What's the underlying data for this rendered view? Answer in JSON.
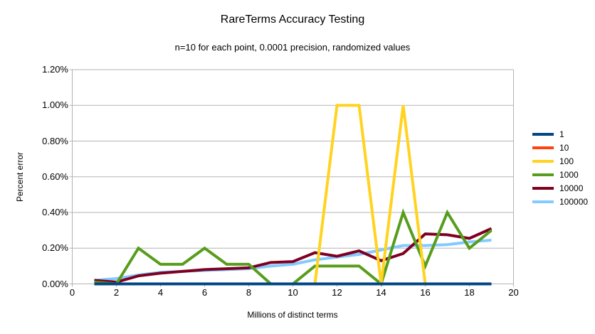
{
  "colors": {
    "background": "#ffffff",
    "grid": "#b3b3b3",
    "axis": "#b3b3b3",
    "text": "#000000"
  },
  "chart_data": {
    "type": "line",
    "title": "RareTerms Accuracy Testing",
    "subtitle": "n=10 for each point, 0.0001 precision, randomized values",
    "xlabel": "Millions of distinct terms",
    "ylabel": "Percent error",
    "xlim": [
      0,
      20
    ],
    "ylim": [
      0,
      1.2
    ],
    "grid": true,
    "legend_position": "right",
    "x_ticks": [
      0,
      2,
      4,
      6,
      8,
      10,
      12,
      14,
      16,
      18,
      20
    ],
    "y_ticks": [
      0,
      0.2,
      0.4,
      0.6,
      0.8,
      1.0,
      1.2
    ],
    "y_tick_labels": [
      "0.00%",
      "0.20%",
      "0.40%",
      "0.60%",
      "0.80%",
      "1.00%",
      "1.20%"
    ],
    "x": [
      1,
      2,
      3,
      4,
      5,
      6,
      7,
      8,
      9,
      10,
      11,
      12,
      13,
      14,
      15,
      16,
      17,
      18,
      19
    ],
    "series": [
      {
        "name": "1",
        "color": "#004586",
        "values": [
          0,
          0,
          0,
          0,
          0,
          0,
          0,
          0,
          0,
          0,
          0,
          0,
          0,
          0,
          0,
          0,
          0,
          0,
          0
        ]
      },
      {
        "name": "10",
        "color": "#FF420E",
        "values": [
          0,
          0,
          0,
          0,
          0,
          0,
          0,
          0,
          0,
          0,
          0,
          0,
          0,
          0,
          0,
          0,
          0,
          0,
          0
        ]
      },
      {
        "name": "100",
        "color": "#FFD320",
        "values": [
          0,
          0,
          0,
          0,
          0,
          0,
          0,
          0,
          0,
          0,
          0,
          1.0,
          1.0,
          0,
          1.0,
          0,
          0,
          0,
          0
        ]
      },
      {
        "name": "1000",
        "color": "#579D1C",
        "values": [
          0.01,
          0,
          0.2,
          0.11,
          0.11,
          0.2,
          0.11,
          0.11,
          0,
          0,
          0.1,
          0.1,
          0.1,
          0,
          0.4,
          0.1,
          0.4,
          0.2,
          0.3
        ]
      },
      {
        "name": "10000",
        "color": "#7E0021",
        "values": [
          0.02,
          0.01,
          0.045,
          0.06,
          0.07,
          0.08,
          0.085,
          0.09,
          0.12,
          0.125,
          0.175,
          0.155,
          0.185,
          0.13,
          0.17,
          0.28,
          0.275,
          0.255,
          0.31
        ]
      },
      {
        "name": "100000",
        "color": "#83CAFF",
        "values": [
          0.02,
          0.03,
          0.05,
          0.065,
          0.07,
          0.075,
          0.08,
          0.085,
          0.1,
          0.11,
          0.135,
          0.15,
          0.165,
          0.19,
          0.215,
          0.215,
          0.22,
          0.235,
          0.245
        ]
      }
    ],
    "draw_order": [
      "100000",
      "10000",
      "1000",
      "100",
      "10",
      "1"
    ],
    "line_width": 4
  }
}
